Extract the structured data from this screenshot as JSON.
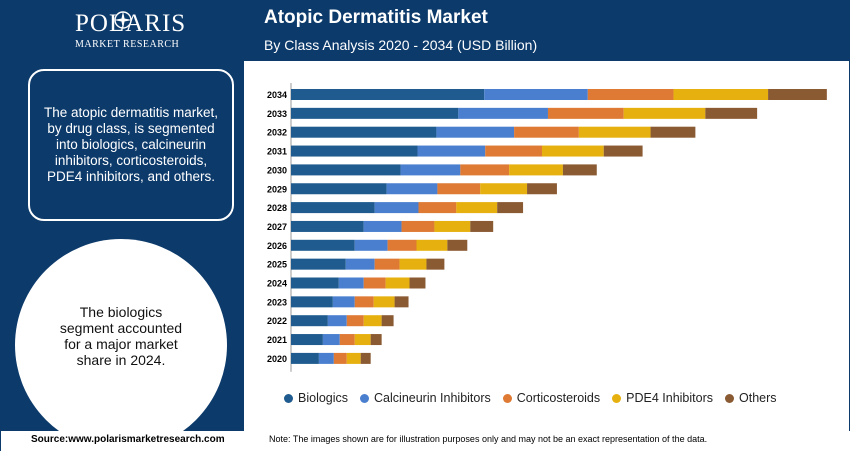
{
  "brand": {
    "name": "POLARIS",
    "tagline": "MARKET RESEARCH"
  },
  "header": {
    "title": "Atopic Dermatitis Market",
    "subtitle": "By Class Analysis 2020 - 2034 (USD Billion)"
  },
  "sidebar": {
    "description": "The atopic dermatitis market, by drug class, is segmented into biologics, calcineurin inhibitors, corticosteroids, PDE4 inhibitors, and others.",
    "highlight": "The biologics segment accounted for a major market share in 2024."
  },
  "footer": {
    "source": "Source:www.polarismarketresearch.com",
    "note": "Note: The images shown are for illustration purposes only and may not be an exact representation of the data."
  },
  "chart_data": {
    "type": "bar",
    "orientation": "horizontal",
    "stacked": true,
    "categories": [
      "2034",
      "2033",
      "2032",
      "2031",
      "2030",
      "2029",
      "2028",
      "2027",
      "2026",
      "2025",
      "2024",
      "2023",
      "2022",
      "2021",
      "2020"
    ],
    "series": [
      {
        "name": "Biologics",
        "color": "#1f5b8e",
        "values": [
          194,
          168,
          146,
          127,
          110,
          96,
          84,
          73,
          64,
          55,
          48,
          42,
          37,
          32,
          28
        ]
      },
      {
        "name": "Calcineurin Inhibitors",
        "color": "#4a7fcf",
        "values": [
          104,
          90,
          78,
          68,
          60,
          51,
          44,
          38,
          33,
          29,
          25,
          22,
          19,
          17,
          15
        ]
      },
      {
        "name": "Corticosteroids",
        "color": "#de7a34",
        "values": [
          86,
          76,
          65,
          57,
          49,
          43,
          38,
          33,
          29,
          25,
          22,
          19,
          17,
          15,
          13
        ]
      },
      {
        "name": "PDE4 Inhibitors",
        "color": "#e6b00e",
        "values": [
          95,
          82,
          72,
          62,
          54,
          47,
          41,
          36,
          31,
          27,
          24,
          21,
          18,
          16,
          14
        ]
      },
      {
        "name": "Others",
        "color": "#8a5a33",
        "values": [
          59,
          52,
          45,
          39,
          34,
          30,
          26,
          23,
          20,
          18,
          16,
          14,
          12,
          11,
          10
        ]
      }
    ]
  }
}
